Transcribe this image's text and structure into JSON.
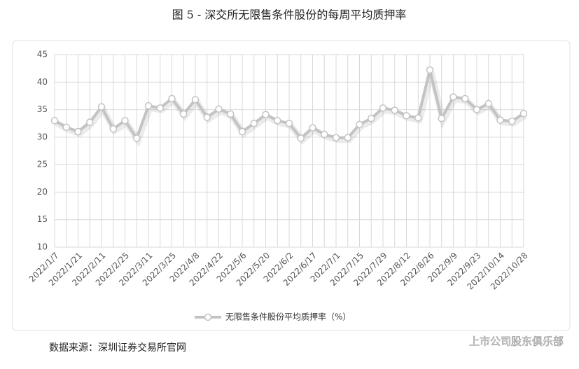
{
  "chart_data": {
    "type": "line",
    "title": "图 5 - 深交所无限售条件股份的每周平均质押率",
    "categories": [
      "2022/1/7",
      null,
      "2022/1/21",
      null,
      "2022/2/11",
      null,
      "2022/2/25",
      null,
      "2022/3/11",
      null,
      "2022/3/25",
      null,
      "2022/4/8",
      null,
      "2022/4/22",
      null,
      "2022/5/6",
      null,
      "2022/5/20",
      null,
      "2022/6/2",
      null,
      "2022/6/17",
      null,
      "2022/7/1",
      null,
      "2022/7/15",
      null,
      "2022/7/29",
      null,
      "2022/8/12",
      null,
      "2022/8/26",
      null,
      "2022/9/9",
      null,
      "2022/9/23",
      null,
      "2022/10/14",
      null,
      "2022/10/28"
    ],
    "series": [
      {
        "name": "无限售条件股份平均质押率（%）",
        "color": "#c3c3c3",
        "values": [
          33,
          31.8,
          31,
          32.7,
          35.5,
          31.5,
          33,
          29.8,
          35.7,
          35.3,
          37,
          34.2,
          36.8,
          33.6,
          35.1,
          34.2,
          31,
          32.5,
          34.1,
          33,
          32.5,
          29.8,
          31.7,
          30.5,
          29.9,
          29.9,
          32.3,
          33.4,
          35.3,
          34.9,
          33.9,
          33.5,
          42.2,
          33.4,
          37.3,
          37,
          35,
          36.1,
          33.1,
          32.9,
          34.3
        ]
      }
    ],
    "ylim": [
      10,
      45
    ],
    "yticks": [
      10,
      15,
      20,
      25,
      30,
      35,
      40,
      45
    ],
    "grid": true,
    "legend": "bottom",
    "source": "数据来源：深圳证券交易所官网",
    "watermark": "上市公司股东俱乐部"
  }
}
